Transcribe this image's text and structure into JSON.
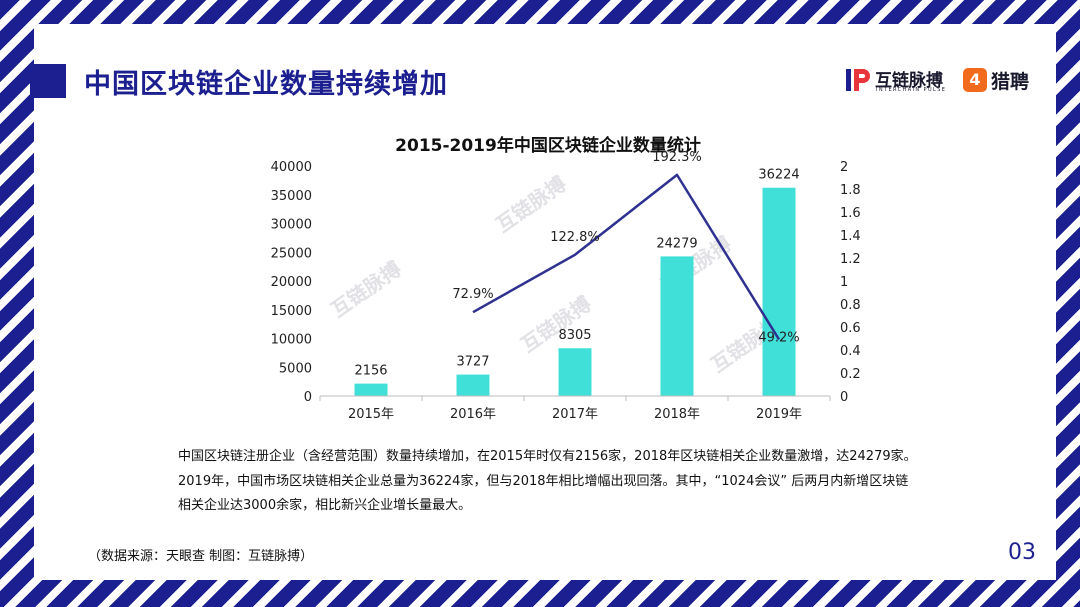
{
  "header": {
    "title": "中国区块链企业数量持续增加"
  },
  "logos": {
    "brand1_name": "互链脉搏",
    "brand1_subtitle": "INTERCHAIN PULSE",
    "brand2_name": "猎聘",
    "brand2_mark": "4"
  },
  "watermark_text": "互链脉搏",
  "chart_data": {
    "type": "bar",
    "title": "2015-2019年中国区块链企业数量统计",
    "categories": [
      "2015年",
      "2016年",
      "2017年",
      "2018年",
      "2019年"
    ],
    "series": [
      {
        "type": "bar",
        "values": [
          2156,
          3727,
          8305,
          24279,
          36224
        ],
        "color": "#40e0d8"
      },
      {
        "type": "line",
        "axis": "right",
        "values": [
          null,
          0.729,
          1.228,
          1.923,
          0.492
        ],
        "labels": [
          "",
          "72.9%",
          "122.8%",
          "192.3%",
          "49.2%"
        ],
        "color": "#2f3190"
      }
    ],
    "y_left": {
      "min": 0,
      "max": 40000,
      "ticks": [
        "0",
        "5000",
        "10000",
        "15000",
        "20000",
        "25000",
        "30000",
        "35000",
        "40000"
      ]
    },
    "y_right": {
      "min": 0,
      "max": 2,
      "ticks": [
        "0",
        "0.2",
        "0.4",
        "0.6",
        "0.8",
        "1",
        "1.2",
        "1.4",
        "1.6",
        "1.8",
        "2"
      ]
    },
    "grid": false,
    "legend": "none"
  },
  "description": {
    "line1": "中国区块链注册企业（含经营范围）数量持续增加，在2015年时仅有2156家，2018年区块链相关企业数量激增，达24279家。",
    "line2": "2019年，中国市场区块链相关企业总量为36224家，但与2018年相比增幅出现回落。其中，“1024会议” 后两月内新增区块链",
    "line3": "相关企业达3000余家，相比新兴企业增长量最大。"
  },
  "footer": {
    "source": "（数据来源：天眼查   制图：互链脉搏）",
    "page_number": "03"
  }
}
